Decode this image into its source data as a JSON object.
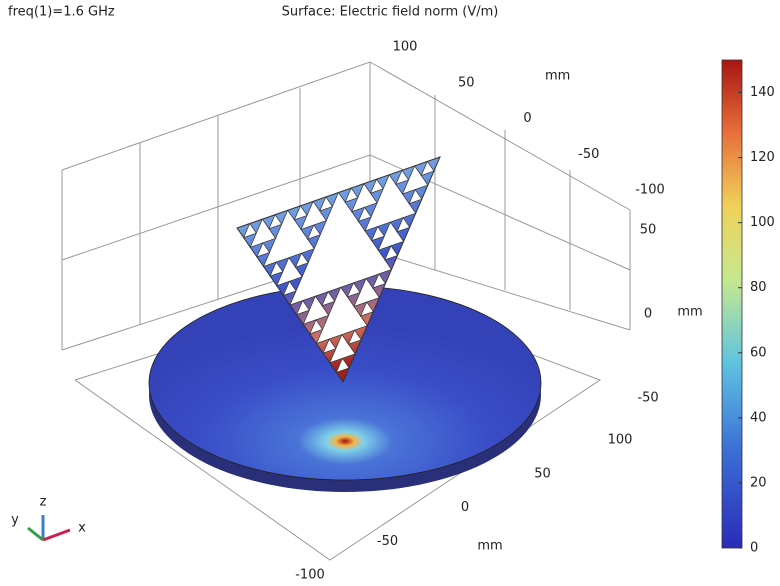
{
  "header": {
    "left": "freq(1)=1.6 GHz",
    "title": "Surface: Electric field norm (V/m)"
  },
  "colorbar": {
    "range": [
      0,
      150
    ],
    "ticks": [
      0,
      20,
      40,
      60,
      80,
      100,
      120,
      140
    ]
  },
  "axes": {
    "x": {
      "label": "mm",
      "ticks": [
        100,
        50,
        0,
        -50,
        -100
      ]
    },
    "y": {
      "label": "mm",
      "ticks": [
        100,
        50,
        0,
        -50,
        -100
      ]
    },
    "z": {
      "label": "mm",
      "ticks": [
        50,
        0,
        -50
      ]
    }
  },
  "triad": {
    "x": "x",
    "y": "y",
    "z": "z"
  }
}
